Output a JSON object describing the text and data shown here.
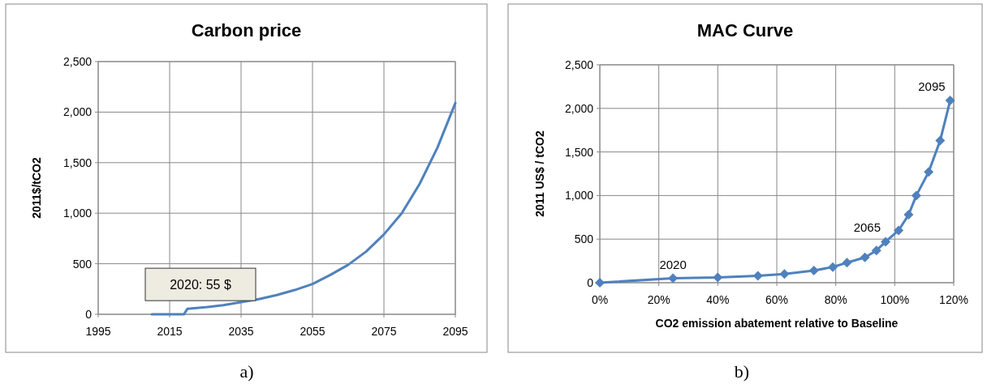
{
  "chart_data": [
    {
      "type": "line",
      "title": "Carbon price",
      "ylabel": "2011$/tCO2",
      "x": [
        2010,
        2019,
        2020,
        2025,
        2030,
        2035,
        2040,
        2045,
        2050,
        2055,
        2060,
        2065,
        2070,
        2075,
        2080,
        2085,
        2090,
        2095
      ],
      "series": [
        {
          "color": "#4f81bd",
          "values": [
            0,
            0,
            55,
            70,
            90,
            120,
            150,
            190,
            240,
            300,
            390,
            490,
            620,
            790,
            1000,
            1290,
            1650,
            2090
          ]
        }
      ],
      "xlim": [
        1995,
        2095
      ],
      "xticks": [
        1995,
        2015,
        2035,
        2055,
        2075,
        2095
      ],
      "ylim": [
        0,
        2500
      ],
      "yticks": [
        {
          "value": 0,
          "label": "0"
        },
        500,
        {
          "value": 1000,
          "label": "1,000"
        },
        {
          "value": 1500,
          "label": "1,500"
        },
        {
          "value": 2000,
          "label": "2,000"
        },
        {
          "value": 2500,
          "label": "2,500"
        }
      ],
      "grid": true,
      "marker": "none",
      "annotations": [
        {
          "text": "2020: 55 $",
          "x": 2020,
          "y": 55
        },
        "a)"
      ]
    },
    {
      "type": "line",
      "title": "MAC Curve",
      "ylabel": "2011 US$ / tCO2",
      "xlabel": "CO2 emission abatement relative to Baseline",
      "x": [
        0,
        24.8,
        40,
        53.6,
        62.6,
        72.6,
        79,
        83.8,
        89.9,
        93.8,
        96.9,
        101.3,
        104.7,
        107.3,
        111.5,
        115.4,
        118.8
      ],
      "series": [
        {
          "color": "#4f81bd",
          "values": [
            0,
            50,
            60,
            80,
            100,
            140,
            180,
            230,
            290,
            370,
            470,
            600,
            780,
            1000,
            1270,
            1630,
            2090
          ]
        }
      ],
      "xlim": [
        0,
        120
      ],
      "xticks": [
        {
          "value": 0,
          "label": "0%"
        },
        {
          "value": 20,
          "label": "20%"
        },
        {
          "value": 40,
          "label": "40%"
        },
        {
          "value": 60,
          "label": "60%"
        },
        {
          "value": 80,
          "label": "80%"
        },
        {
          "value": 100,
          "label": "100%"
        },
        {
          "value": 120,
          "label": "120%"
        }
      ],
      "ylim": [
        0,
        2500
      ],
      "yticks": [
        {
          "value": 0,
          "label": "0"
        },
        500,
        {
          "value": 1000,
          "label": "1,000"
        },
        {
          "value": 1500,
          "label": "1,500"
        },
        {
          "value": 2000,
          "label": "2,000"
        },
        {
          "value": 2500,
          "label": "2,500"
        }
      ],
      "grid": true,
      "marker": "diamond",
      "annotations": [
        {
          "text": "2020",
          "x": 24.8,
          "y": 50
        },
        {
          "text": "2065",
          "x": 96.9,
          "y": 470
        },
        {
          "text": "2095",
          "x": 118.8,
          "y": 2090
        },
        "b)"
      ]
    }
  ]
}
